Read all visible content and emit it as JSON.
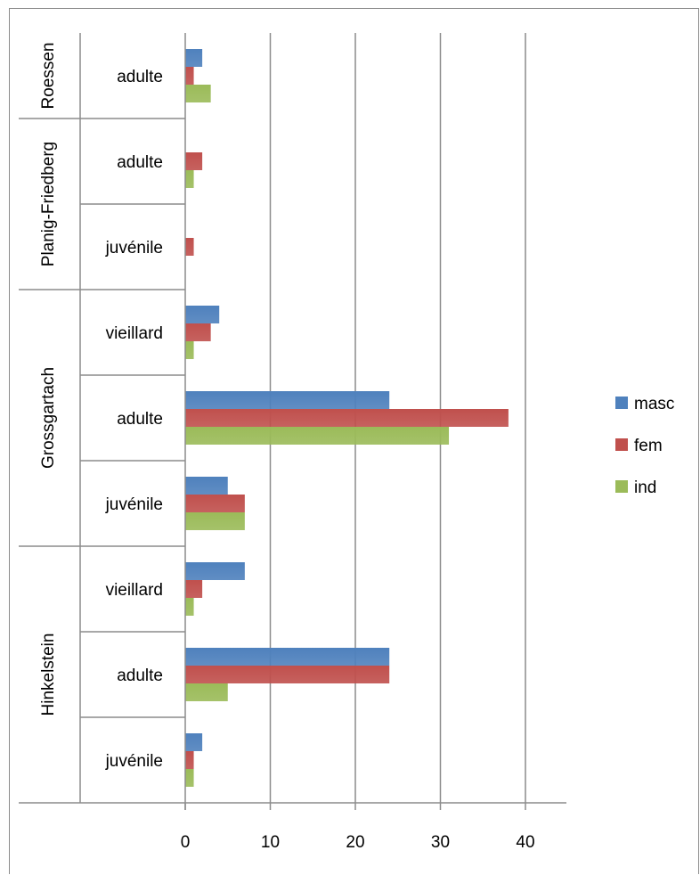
{
  "chart_data": {
    "type": "bar",
    "orientation": "horizontal",
    "title": "",
    "xlabel": "",
    "ylabel": "",
    "xlim": [
      0,
      45
    ],
    "x_ticks": [
      0,
      10,
      20,
      30,
      40
    ],
    "grid": true,
    "legend_position": "right",
    "groups": [
      {
        "name": "Roessen",
        "categories": [
          "adulte"
        ]
      },
      {
        "name": "Planig-Friedberg",
        "categories": [
          "adulte",
          "juvénile"
        ]
      },
      {
        "name": "Grossgartach",
        "categories": [
          "vieillard",
          "adulte",
          "juvénile"
        ]
      },
      {
        "name": "Hinkelstein",
        "categories": [
          "vieillard",
          "adulte",
          "juvénile"
        ]
      }
    ],
    "series": [
      {
        "name": "masc",
        "color": "#4f81bd",
        "values": [
          2,
          0,
          0,
          4,
          24,
          5,
          7,
          24,
          2
        ]
      },
      {
        "name": "fem",
        "color": "#c0504d",
        "values": [
          1,
          2,
          1,
          3,
          38,
          7,
          2,
          24,
          1
        ]
      },
      {
        "name": "ind",
        "color": "#9bbb59",
        "values": [
          3,
          1,
          0,
          1,
          31,
          7,
          1,
          5,
          1
        ]
      }
    ]
  }
}
